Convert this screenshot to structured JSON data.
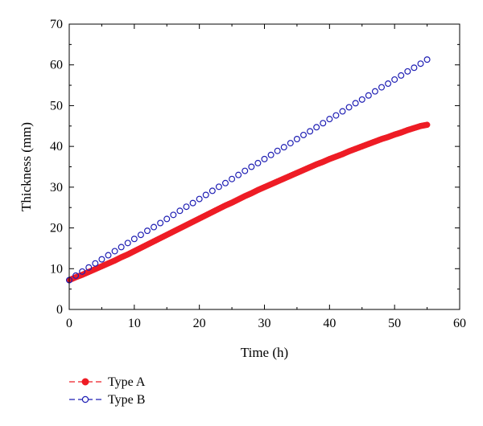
{
  "chart_data": {
    "type": "scatter",
    "xlabel": "Time (h)",
    "ylabel": "Thickness (mm)",
    "xlim": [
      0,
      60
    ],
    "ylim": [
      0,
      70
    ],
    "xticks": [
      0,
      10,
      20,
      30,
      40,
      50,
      60
    ],
    "yticks": [
      0,
      10,
      20,
      30,
      40,
      50,
      60,
      70
    ],
    "grid": false,
    "legend_position": "bottom-left, below plot",
    "series": [
      {
        "name": "Type A",
        "color": "#ee1c25",
        "marker": "filled-circle",
        "x": [
          0,
          1,
          2,
          3,
          4,
          5,
          6,
          7,
          8,
          9,
          10,
          11,
          12,
          13,
          14,
          15,
          16,
          17,
          18,
          19,
          20,
          21,
          22,
          23,
          24,
          25,
          26,
          27,
          28,
          29,
          30,
          31,
          32,
          33,
          34,
          35,
          36,
          37,
          38,
          39,
          40,
          41,
          42,
          43,
          44,
          45,
          46,
          47,
          48,
          49,
          50,
          51,
          52,
          53,
          54,
          55
        ],
        "y": [
          7.2,
          7.9,
          8.5,
          9.2,
          9.9,
          10.6,
          11.3,
          12.0,
          12.8,
          13.5,
          14.3,
          15.1,
          15.9,
          16.7,
          17.5,
          18.3,
          19.1,
          19.9,
          20.7,
          21.5,
          22.3,
          23.1,
          23.9,
          24.7,
          25.5,
          26.2,
          27.0,
          27.8,
          28.5,
          29.3,
          30.0,
          30.7,
          31.4,
          32.1,
          32.8,
          33.5,
          34.2,
          34.9,
          35.6,
          36.2,
          36.9,
          37.5,
          38.1,
          38.8,
          39.4,
          40.0,
          40.6,
          41.2,
          41.8,
          42.3,
          42.9,
          43.4,
          44.0,
          44.5,
          45.0,
          45.3
        ]
      },
      {
        "name": "Type B",
        "color": "#1f1fb4",
        "marker": "open-circle",
        "x": [
          0,
          1,
          2,
          3,
          4,
          5,
          6,
          7,
          8,
          9,
          10,
          11,
          12,
          13,
          14,
          15,
          16,
          17,
          18,
          19,
          20,
          21,
          22,
          23,
          24,
          25,
          26,
          27,
          28,
          29,
          30,
          31,
          32,
          33,
          34,
          35,
          36,
          37,
          38,
          39,
          40,
          41,
          42,
          43,
          44,
          45,
          46,
          47,
          48,
          49,
          50,
          51,
          52,
          53,
          54,
          55
        ],
        "y": [
          7.2,
          8.3,
          9.3,
          10.3,
          11.3,
          12.3,
          13.3,
          14.3,
          15.3,
          16.3,
          17.3,
          18.3,
          19.3,
          20.2,
          21.2,
          22.2,
          23.2,
          24.2,
          25.2,
          26.1,
          27.1,
          28.1,
          29.1,
          30.1,
          31.0,
          32.0,
          33.0,
          34.0,
          35.0,
          35.9,
          36.9,
          37.9,
          38.9,
          39.8,
          40.8,
          41.8,
          42.8,
          43.7,
          44.7,
          45.7,
          46.7,
          47.6,
          48.6,
          49.6,
          50.6,
          51.5,
          52.5,
          53.5,
          54.5,
          55.4,
          56.4,
          57.4,
          58.4,
          59.3,
          60.3,
          61.3
        ]
      }
    ]
  }
}
